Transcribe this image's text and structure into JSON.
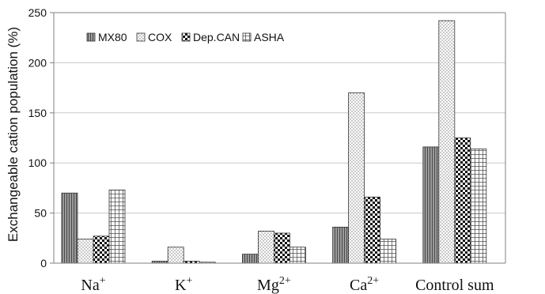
{
  "chart_data": {
    "type": "bar",
    "ylabel": "Exchangeable cation population (%)",
    "xlabel": "",
    "title": "",
    "ylim": [
      0,
      250
    ],
    "yticks": [
      0,
      50,
      100,
      150,
      200,
      250
    ],
    "grid": true,
    "legend_position": "top-left",
    "categories": [
      {
        "base": "Na",
        "sup": "+"
      },
      {
        "base": "K",
        "sup": "+"
      },
      {
        "base": "Mg",
        "sup": "2+"
      },
      {
        "base": "Ca",
        "sup": "2+"
      },
      {
        "base": "Control sum",
        "sup": ""
      }
    ],
    "series": [
      {
        "name": "MX80",
        "pattern": "vertical-lines",
        "values": [
          70,
          2,
          9,
          36,
          116
        ]
      },
      {
        "name": "COX",
        "pattern": "light-dots",
        "values": [
          24,
          16,
          32,
          170,
          242
        ]
      },
      {
        "name": "Dep.CAN",
        "pattern": "checker",
        "values": [
          27,
          2,
          30,
          66,
          125
        ]
      },
      {
        "name": "ASHA",
        "pattern": "grid",
        "values": [
          73,
          1,
          16,
          24,
          114
        ]
      }
    ]
  },
  "colors": {
    "gridline": "#c8c8c8",
    "axis": "#808080",
    "bar_outline": "#333333"
  }
}
